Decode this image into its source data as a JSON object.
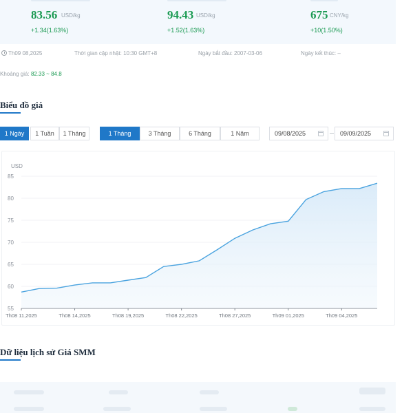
{
  "cards": [
    {
      "price": "83.56",
      "unit": "USD/kg",
      "change": "+1.34(1.63%)"
    },
    {
      "price": "94.43",
      "unit": "USD/kg",
      "change": "+1.52(1.63%)"
    },
    {
      "price": "675",
      "unit": "CNY/kg",
      "change": "+10(1.50%)"
    }
  ],
  "info": {
    "date": "Th09 08,2025",
    "updated": "Thời gian cập nhật: 10:30 GMT+8",
    "start": "Ngày bắt đầu: 2007-03-06",
    "end": "Ngày kết thúc: –"
  },
  "range": {
    "label": "Khoảng giá:",
    "value": "82.33 ~ 84.8"
  },
  "chart_section": {
    "title": "Biểu đồ giá"
  },
  "controls": {
    "period": [
      "1 Ngày",
      "1 Tuần",
      "1 Tháng"
    ],
    "range": [
      "1 Tháng",
      "3 Tháng",
      "6 Tháng",
      "1 Năm"
    ],
    "date_from": "09/08/2025",
    "date_to": "09/09/2025"
  },
  "chart_data": {
    "type": "area",
    "ylabel": "USD",
    "ylim": [
      55,
      85
    ],
    "yticks": [
      55,
      60,
      65,
      70,
      75,
      80,
      85
    ],
    "xlabels": [
      "Th08 11,2025",
      "Th08 14,2025",
      "Th08 19,2025",
      "Th08 22,2025",
      "Th08 27,2025",
      "Th09 01,2025",
      "Th09 04,2025"
    ],
    "xlabel_index": [
      0,
      3,
      6,
      9,
      12,
      15,
      18
    ],
    "values": [
      58.7,
      59.5,
      59.6,
      60.3,
      60.8,
      60.8,
      61.4,
      62.0,
      64.5,
      65.0,
      65.8,
      68.3,
      70.9,
      72.8,
      74.2,
      74.8,
      79.7,
      81.5,
      82.2,
      82.2,
      83.4
    ],
    "grid": true,
    "legend": "none"
  },
  "history_section": {
    "title": "Dữ liệu lịch sử Giá SMM"
  },
  "colors": {
    "accent": "#1f78c8",
    "up": "#1a9a52",
    "line": "#4aa3df"
  }
}
